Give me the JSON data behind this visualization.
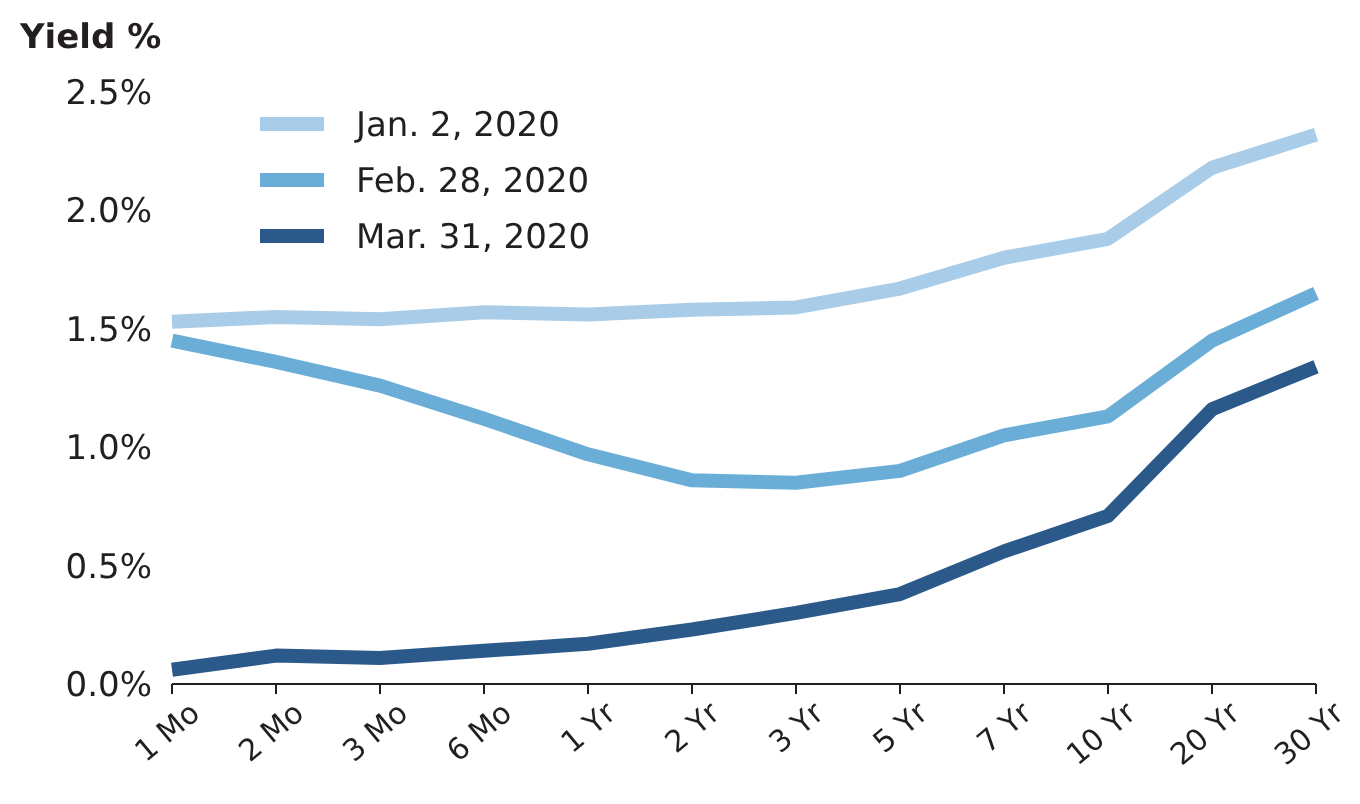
{
  "chart_data": {
    "type": "line",
    "ylabel": "Yield %",
    "categories": [
      "1 Mo",
      "2 Mo",
      "3 Mo",
      "6 Mo",
      "1 Yr",
      "2 Yr",
      "3 Yr",
      "5 Yr",
      "7 Yr",
      "10 Yr",
      "20 Yr",
      "30 Yr"
    ],
    "series": [
      {
        "name": "Jan. 2, 2020",
        "color": "#a9cde8",
        "values": [
          1.53,
          1.55,
          1.54,
          1.57,
          1.56,
          1.58,
          1.59,
          1.67,
          1.8,
          1.88,
          2.18,
          2.32
        ]
      },
      {
        "name": "Feb. 28, 2020",
        "color": "#6aaed8",
        "values": [
          1.45,
          1.36,
          1.26,
          1.12,
          0.97,
          0.86,
          0.85,
          0.9,
          1.05,
          1.13,
          1.45,
          1.65
        ]
      },
      {
        "name": "Mar. 31, 2020",
        "color": "#2b5a8a",
        "values": [
          0.06,
          0.12,
          0.11,
          0.14,
          0.17,
          0.23,
          0.3,
          0.38,
          0.56,
          0.71,
          1.16,
          1.34
        ]
      }
    ],
    "ylim": [
      0,
      2.5
    ],
    "yticks": [
      {
        "value": 0,
        "label": "0.0%"
      },
      {
        "value": 0.5,
        "label": "0.5%"
      },
      {
        "value": 1,
        "label": "1.0%"
      },
      {
        "value": 1.5,
        "label": "1.5%"
      },
      {
        "value": 2,
        "label": "2.0%"
      },
      {
        "value": 2.5,
        "label": "2.5%"
      }
    ],
    "legend": "top left",
    "marker": "none",
    "line_style": "solid",
    "grid": false
  }
}
